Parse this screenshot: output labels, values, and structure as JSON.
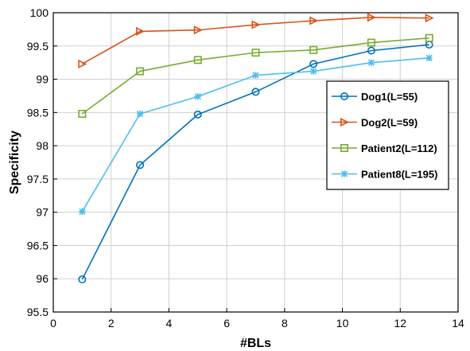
{
  "chart_data": {
    "type": "line",
    "xlabel": "#BLs",
    "ylabel": "Specificity",
    "xlim": [
      0,
      14
    ],
    "ylim": [
      95.5,
      100
    ],
    "xticks": [
      "0",
      "2",
      "4",
      "6",
      "8",
      "10",
      "12",
      "14"
    ],
    "yticks": [
      "95.5",
      "96",
      "96.5",
      "97",
      "97.5",
      "98",
      "98.5",
      "99",
      "99.5",
      "100"
    ],
    "grid": true,
    "legend_position": "right",
    "x": [
      1,
      3,
      5,
      7,
      9,
      11,
      13
    ],
    "series": [
      {
        "name": "Dog1(L=55)",
        "color": "#0072bd",
        "marker": "circle",
        "values": [
          95.99,
          97.71,
          98.47,
          98.81,
          99.23,
          99.43,
          99.52
        ]
      },
      {
        "name": "Dog2(L=59)",
        "color": "#d95319",
        "marker": "triangle-right",
        "values": [
          99.23,
          99.72,
          99.74,
          99.82,
          99.88,
          99.93,
          99.92
        ]
      },
      {
        "name": "Patient2(L=112)",
        "color": "#77ac30",
        "marker": "square",
        "values": [
          98.48,
          99.12,
          99.29,
          99.4,
          99.44,
          99.55,
          99.62
        ]
      },
      {
        "name": "Patient8(L=195)",
        "color": "#4dbeee",
        "marker": "asterisk",
        "values": [
          97.01,
          98.48,
          98.74,
          99.06,
          99.12,
          99.25,
          99.32
        ]
      }
    ]
  }
}
